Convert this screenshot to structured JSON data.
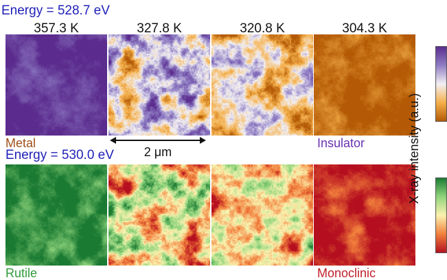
{
  "energy_top": "Energy = 528.7 eV",
  "energy_bottom": "Energy = 530.0 eV",
  "temperatures": [
    "357.3 K",
    "327.8 K",
    "320.8 K",
    "304.3 K"
  ],
  "top_row_labels": {
    "left": "Metal",
    "right": "Insulator"
  },
  "bottom_row_labels": {
    "left": "Rutile",
    "right": "Monoclinic"
  },
  "scale_bar": "2 μm",
  "colorbar_label": "X-ray intensity (a.u.)",
  "colors": {
    "energy_text": "#1f1fb8",
    "metal_text": "#a0501a",
    "insulator_text": "#6a30b0",
    "rutile_text": "#2e9a3a",
    "monoclinic_text": "#c0202a",
    "top_colormap": [
      "#5b2c8e",
      "#8e7cc3",
      "#f2f0f4",
      "#f5b04a",
      "#b45a06"
    ],
    "bottom_colormap": [
      "#1a7a32",
      "#8fd47c",
      "#fbf3b0",
      "#f2803c",
      "#b50f1f"
    ]
  },
  "panels": {
    "top": [
      {
        "temperature_index": 0,
        "mix": 0.02
      },
      {
        "temperature_index": 1,
        "mix": 0.45
      },
      {
        "temperature_index": 2,
        "mix": 0.62
      },
      {
        "temperature_index": 3,
        "mix": 0.97
      }
    ],
    "bottom": [
      {
        "temperature_index": 0,
        "mix": 0.06
      },
      {
        "temperature_index": 1,
        "mix": 0.48
      },
      {
        "temperature_index": 2,
        "mix": 0.62
      },
      {
        "temperature_index": 3,
        "mix": 0.95
      }
    ]
  }
}
